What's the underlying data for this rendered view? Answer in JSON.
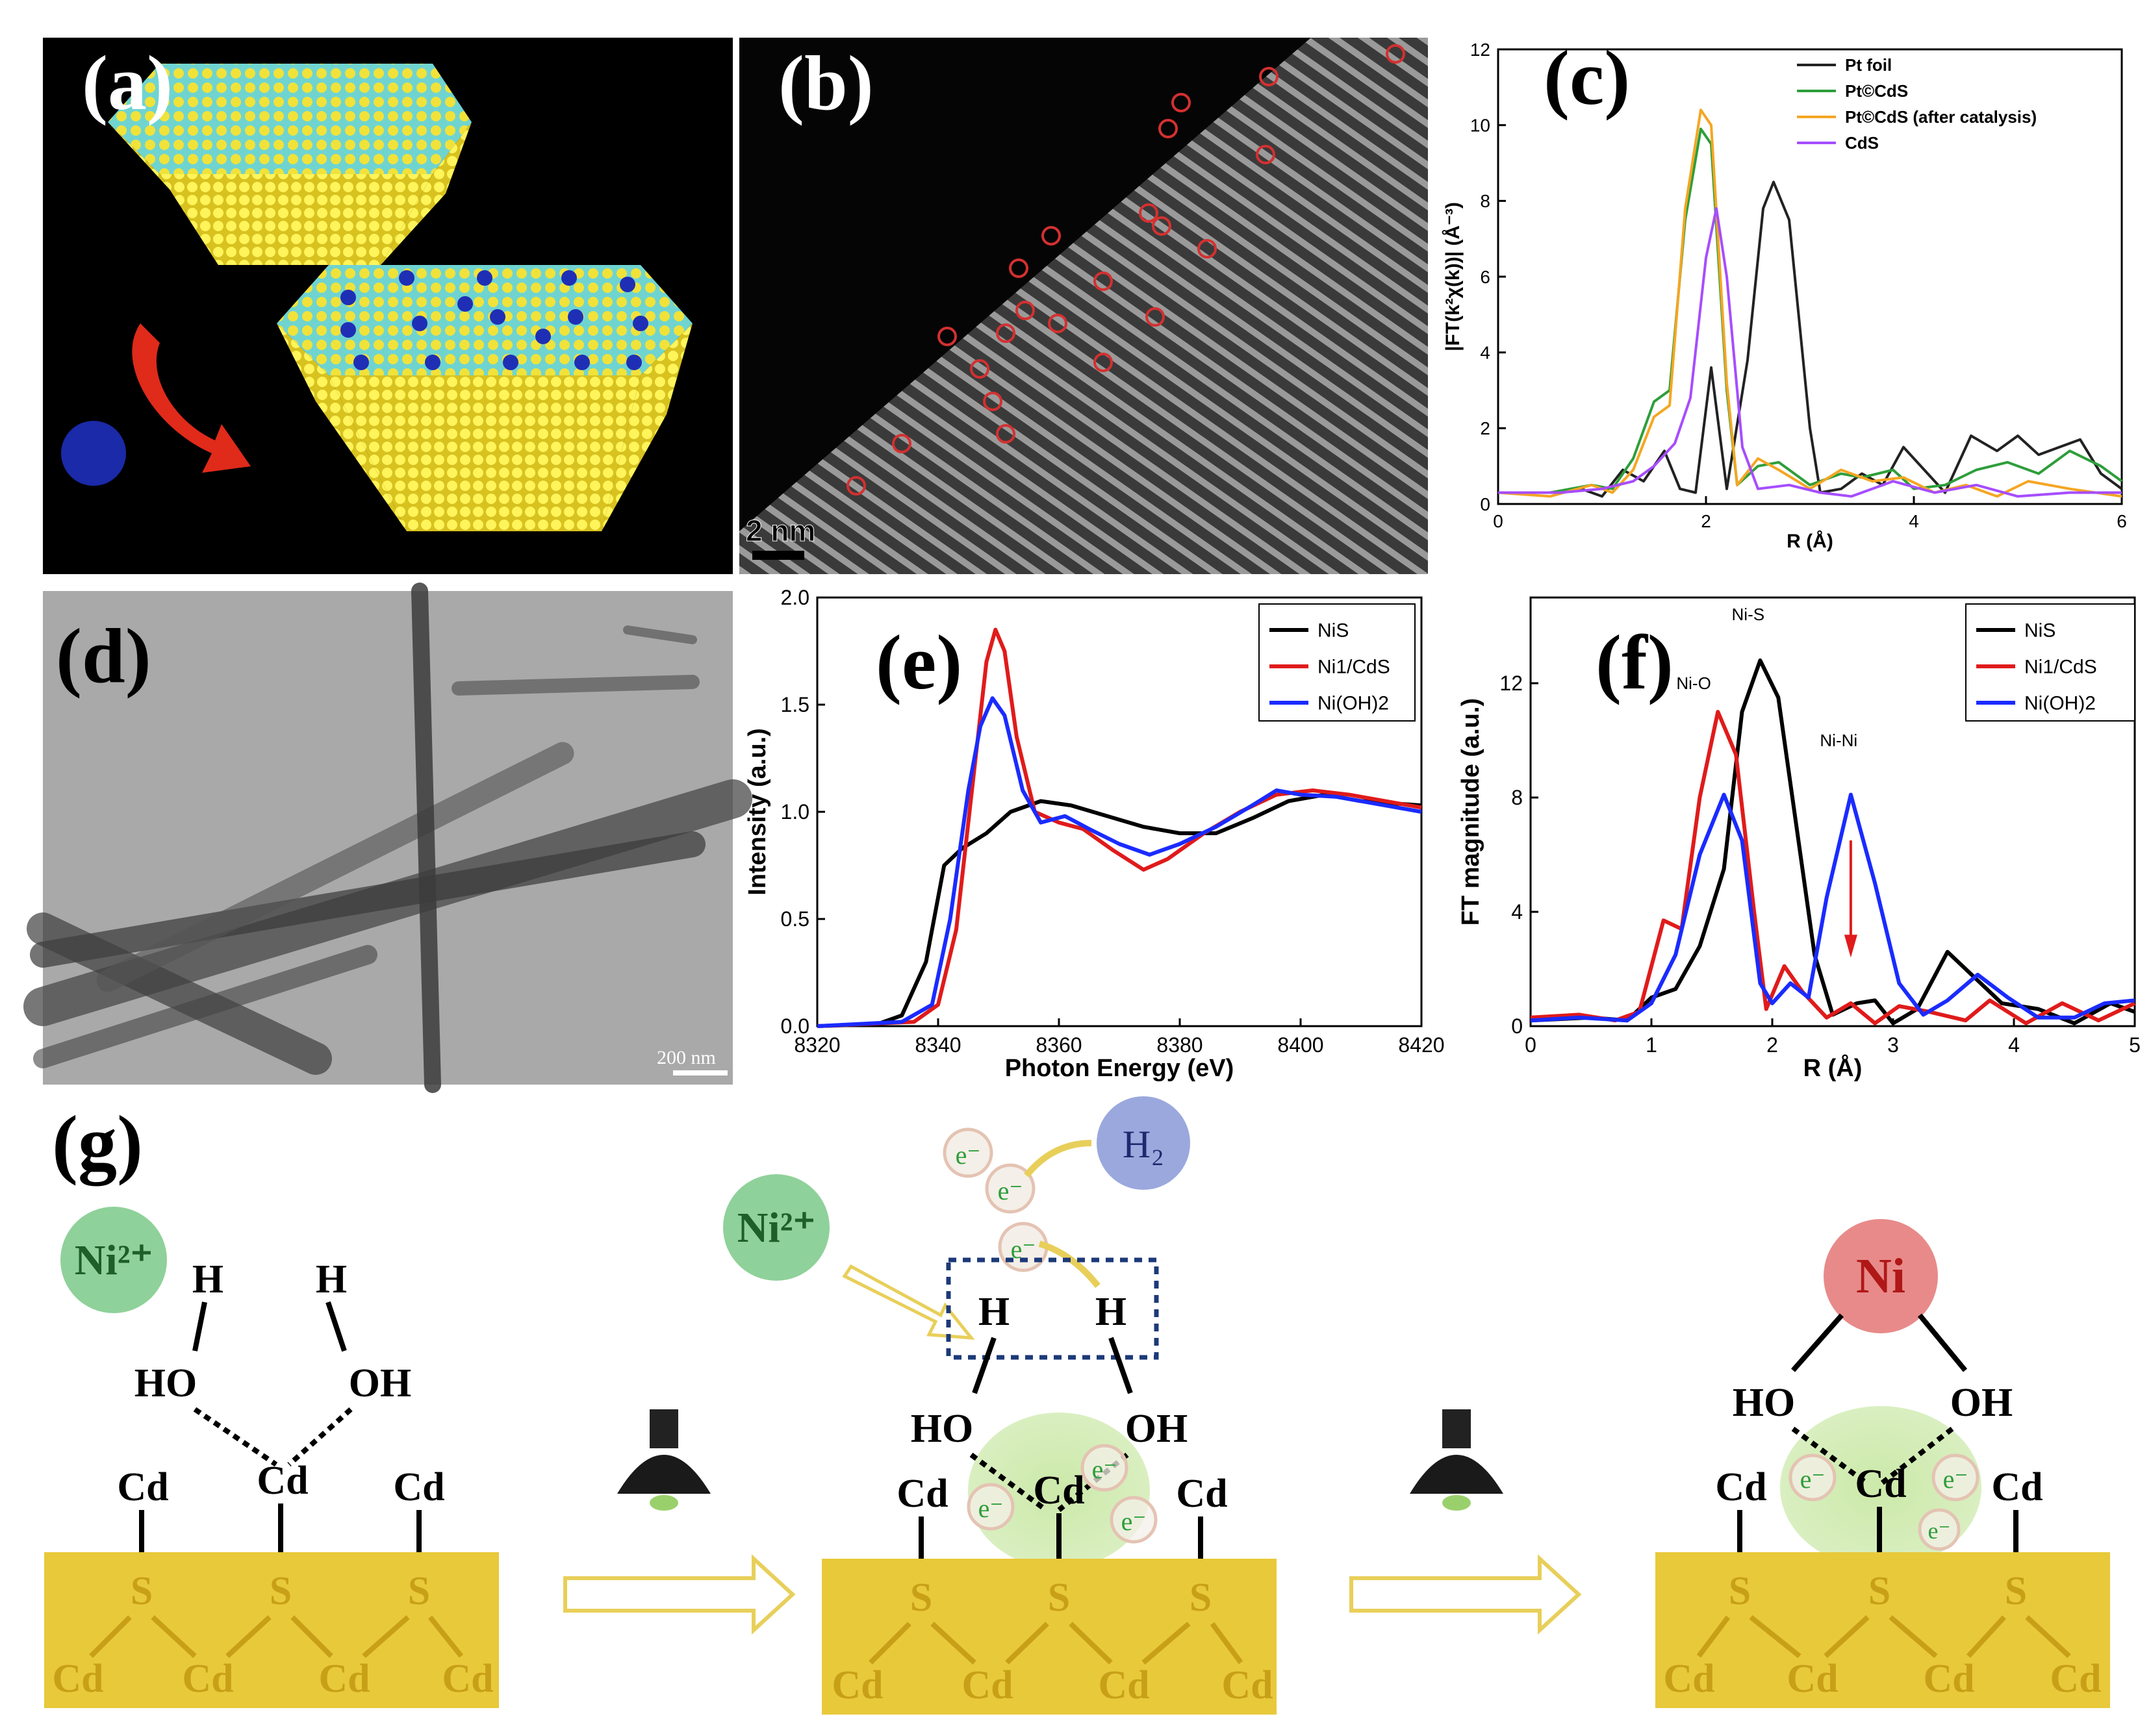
{
  "labels": {
    "a": "(a)",
    "b": "(b)",
    "c": "(c)",
    "d": "(d)",
    "e": "(e)",
    "f": "(f)",
    "g": "(g)"
  },
  "panel_b": {
    "scalebar": "2 nm"
  },
  "panel_d": {
    "scalebar": "200 nm"
  },
  "colors": {
    "cds_surface": "#e8c93a",
    "ni_green": "#8fd19a",
    "ni_red": "#e88a8a",
    "h2_blue": "#9aa8dd",
    "black": "#000000",
    "red": "#d91e1e",
    "blue": "#1a2bff",
    "green": "#2e9e3a",
    "orange": "#f5a623",
    "purple": "#a64dff"
  },
  "chart_data": [
    {
      "id": "c",
      "type": "line",
      "xlabel": "R (Å)",
      "ylabel": "|FT(k²χ(k))| (Å⁻³)",
      "xlim": [
        0,
        6
      ],
      "ylim": [
        0,
        12
      ],
      "xticks": [
        0,
        2,
        4,
        6
      ],
      "yticks": [
        0,
        2,
        4,
        6,
        8,
        10,
        12
      ],
      "legend_position": "top-right",
      "series": [
        {
          "name": "Pt foil",
          "color": "#222222",
          "points": [
            [
              0,
              0.3
            ],
            [
              0.5,
              0.3
            ],
            [
              0.8,
              0.4
            ],
            [
              1.0,
              0.2
            ],
            [
              1.2,
              0.9
            ],
            [
              1.4,
              0.6
            ],
            [
              1.6,
              1.4
            ],
            [
              1.75,
              0.4
            ],
            [
              1.9,
              0.3
            ],
            [
              2.05,
              3.6
            ],
            [
              2.2,
              0.4
            ],
            [
              2.4,
              3.8
            ],
            [
              2.55,
              7.8
            ],
            [
              2.65,
              8.5
            ],
            [
              2.8,
              7.5
            ],
            [
              3.0,
              2.0
            ],
            [
              3.1,
              0.3
            ],
            [
              3.3,
              0.4
            ],
            [
              3.5,
              0.8
            ],
            [
              3.7,
              0.5
            ],
            [
              3.9,
              1.5
            ],
            [
              4.1,
              0.9
            ],
            [
              4.3,
              0.3
            ],
            [
              4.55,
              1.8
            ],
            [
              4.8,
              1.4
            ],
            [
              5.0,
              1.8
            ],
            [
              5.2,
              1.3
            ],
            [
              5.6,
              1.7
            ],
            [
              5.8,
              0.8
            ],
            [
              6.0,
              0.4
            ]
          ]
        },
        {
          "name": "Pt©CdS",
          "color": "#2e9e3a",
          "points": [
            [
              0,
              0.3
            ],
            [
              0.5,
              0.3
            ],
            [
              0.9,
              0.5
            ],
            [
              1.1,
              0.4
            ],
            [
              1.3,
              1.2
            ],
            [
              1.5,
              2.7
            ],
            [
              1.65,
              3.0
            ],
            [
              1.8,
              7.5
            ],
            [
              1.95,
              9.9
            ],
            [
              2.05,
              9.5
            ],
            [
              2.2,
              3.0
            ],
            [
              2.3,
              0.5
            ],
            [
              2.5,
              1.0
            ],
            [
              2.7,
              1.1
            ],
            [
              3.0,
              0.5
            ],
            [
              3.3,
              0.8
            ],
            [
              3.5,
              0.7
            ],
            [
              3.8,
              0.9
            ],
            [
              4.0,
              0.4
            ],
            [
              4.3,
              0.5
            ],
            [
              4.6,
              0.9
            ],
            [
              4.9,
              1.1
            ],
            [
              5.2,
              0.8
            ],
            [
              5.5,
              1.4
            ],
            [
              5.8,
              1.0
            ],
            [
              6.0,
              0.6
            ]
          ]
        },
        {
          "name": "Pt©CdS (after catalysis)",
          "color": "#f5a623",
          "points": [
            [
              0,
              0.3
            ],
            [
              0.5,
              0.2
            ],
            [
              0.9,
              0.5
            ],
            [
              1.1,
              0.3
            ],
            [
              1.3,
              0.9
            ],
            [
              1.5,
              2.3
            ],
            [
              1.65,
              2.6
            ],
            [
              1.8,
              7.8
            ],
            [
              1.95,
              10.4
            ],
            [
              2.05,
              10.0
            ],
            [
              2.2,
              3.2
            ],
            [
              2.3,
              0.5
            ],
            [
              2.5,
              1.2
            ],
            [
              2.7,
              0.9
            ],
            [
              3.0,
              0.4
            ],
            [
              3.3,
              0.9
            ],
            [
              3.6,
              0.6
            ],
            [
              3.9,
              0.7
            ],
            [
              4.2,
              0.3
            ],
            [
              4.5,
              0.5
            ],
            [
              4.8,
              0.2
            ],
            [
              5.1,
              0.6
            ],
            [
              5.5,
              0.4
            ],
            [
              6.0,
              0.2
            ]
          ]
        },
        {
          "name": "CdS",
          "color": "#a64dff",
          "points": [
            [
              0,
              0.3
            ],
            [
              0.6,
              0.3
            ],
            [
              1.0,
              0.4
            ],
            [
              1.3,
              0.6
            ],
            [
              1.5,
              1.0
            ],
            [
              1.7,
              1.6
            ],
            [
              1.85,
              2.8
            ],
            [
              2.0,
              6.5
            ],
            [
              2.1,
              7.8
            ],
            [
              2.2,
              6.0
            ],
            [
              2.35,
              1.5
            ],
            [
              2.5,
              0.4
            ],
            [
              2.8,
              0.5
            ],
            [
              3.1,
              0.3
            ],
            [
              3.4,
              0.2
            ],
            [
              3.8,
              0.6
            ],
            [
              4.2,
              0.3
            ],
            [
              4.6,
              0.5
            ],
            [
              5.0,
              0.2
            ],
            [
              5.5,
              0.3
            ],
            [
              6.0,
              0.3
            ]
          ]
        }
      ]
    },
    {
      "id": "e",
      "type": "line",
      "xlabel": "Photon Energy (eV)",
      "ylabel": "Intensity (a.u.)",
      "xlim": [
        8320,
        8420
      ],
      "ylim": [
        0,
        2.0
      ],
      "xticks": [
        8320,
        8340,
        8360,
        8380,
        8400,
        8420
      ],
      "yticks": [
        0.0,
        0.5,
        1.0,
        1.5,
        2.0
      ],
      "legend_position": "top-right",
      "series": [
        {
          "name": "NiS",
          "color": "#000000",
          "points": [
            [
              8320,
              0
            ],
            [
              8330,
              0.01
            ],
            [
              8334,
              0.05
            ],
            [
              8338,
              0.3
            ],
            [
              8341,
              0.75
            ],
            [
              8344,
              0.83
            ],
            [
              8348,
              0.9
            ],
            [
              8352,
              1.0
            ],
            [
              8357,
              1.05
            ],
            [
              8362,
              1.03
            ],
            [
              8368,
              0.98
            ],
            [
              8374,
              0.93
            ],
            [
              8380,
              0.9
            ],
            [
              8386,
              0.9
            ],
            [
              8392,
              0.97
            ],
            [
              8398,
              1.05
            ],
            [
              8404,
              1.08
            ],
            [
              8410,
              1.05
            ],
            [
              8420,
              1.03
            ]
          ]
        },
        {
          "name": "Ni1/CdS",
          "color": "#e01b1b",
          "points": [
            [
              8320,
              0
            ],
            [
              8336,
              0.02
            ],
            [
              8340,
              0.1
            ],
            [
              8343,
              0.45
            ],
            [
              8346,
              1.2
            ],
            [
              8348,
              1.7
            ],
            [
              8349.5,
              1.85
            ],
            [
              8351,
              1.75
            ],
            [
              8353,
              1.35
            ],
            [
              8356,
              1.0
            ],
            [
              8360,
              0.95
            ],
            [
              8364,
              0.92
            ],
            [
              8369,
              0.82
            ],
            [
              8374,
              0.73
            ],
            [
              8378,
              0.78
            ],
            [
              8384,
              0.9
            ],
            [
              8390,
              1.0
            ],
            [
              8396,
              1.08
            ],
            [
              8402,
              1.1
            ],
            [
              8408,
              1.08
            ],
            [
              8420,
              1.02
            ]
          ]
        },
        {
          "name": "Ni(OH)2",
          "color": "#1a2bff",
          "points": [
            [
              8320,
              0
            ],
            [
              8334,
              0.02
            ],
            [
              8339,
              0.1
            ],
            [
              8342,
              0.5
            ],
            [
              8345,
              1.1
            ],
            [
              8347,
              1.4
            ],
            [
              8349,
              1.53
            ],
            [
              8351,
              1.45
            ],
            [
              8354,
              1.1
            ],
            [
              8357,
              0.95
            ],
            [
              8361,
              0.98
            ],
            [
              8365,
              0.92
            ],
            [
              8370,
              0.85
            ],
            [
              8375,
              0.8
            ],
            [
              8380,
              0.85
            ],
            [
              8386,
              0.93
            ],
            [
              8392,
              1.03
            ],
            [
              8396,
              1.1
            ],
            [
              8400,
              1.08
            ],
            [
              8406,
              1.07
            ],
            [
              8420,
              1.0
            ]
          ]
        }
      ]
    },
    {
      "id": "f",
      "type": "line",
      "xlabel": "R (Å)",
      "ylabel": "FT magnitude (a.u.)",
      "xlim": [
        0,
        5
      ],
      "ylim": [
        0,
        15
      ],
      "xticks": [
        0,
        1,
        2,
        3,
        4,
        5
      ],
      "yticks": [
        0,
        4,
        8,
        12
      ],
      "legend_position": "top-right",
      "annotations": [
        {
          "text": "Ni-O",
          "x": 1.35,
          "y": 11.8
        },
        {
          "text": "Ni-S",
          "x": 1.8,
          "y": 14.2
        },
        {
          "text": "Ni-Ni",
          "x": 2.55,
          "y": 9.8
        }
      ],
      "series": [
        {
          "name": "NiS",
          "color": "#000000",
          "points": [
            [
              0,
              0.2
            ],
            [
              0.5,
              0.3
            ],
            [
              0.8,
              0.2
            ],
            [
              1.0,
              1.0
            ],
            [
              1.2,
              1.3
            ],
            [
              1.4,
              2.8
            ],
            [
              1.6,
              5.5
            ],
            [
              1.75,
              11.0
            ],
            [
              1.9,
              12.8
            ],
            [
              2.05,
              11.5
            ],
            [
              2.2,
              7.0
            ],
            [
              2.35,
              2.5
            ],
            [
              2.5,
              0.4
            ],
            [
              2.7,
              0.8
            ],
            [
              2.85,
              0.9
            ],
            [
              3.0,
              0.1
            ],
            [
              3.2,
              0.6
            ],
            [
              3.45,
              2.6
            ],
            [
              3.65,
              1.8
            ],
            [
              3.9,
              0.8
            ],
            [
              4.2,
              0.6
            ],
            [
              4.5,
              0.1
            ],
            [
              4.8,
              0.8
            ],
            [
              5.0,
              0.5
            ]
          ]
        },
        {
          "name": "Ni1/CdS",
          "color": "#e01b1b",
          "points": [
            [
              0,
              0.3
            ],
            [
              0.4,
              0.4
            ],
            [
              0.7,
              0.2
            ],
            [
              0.9,
              0.5
            ],
            [
              1.1,
              3.7
            ],
            [
              1.25,
              3.4
            ],
            [
              1.4,
              8.0
            ],
            [
              1.55,
              11.0
            ],
            [
              1.7,
              9.5
            ],
            [
              1.85,
              4.0
            ],
            [
              1.95,
              0.6
            ],
            [
              2.1,
              2.1
            ],
            [
              2.25,
              1.2
            ],
            [
              2.45,
              0.3
            ],
            [
              2.65,
              0.8
            ],
            [
              2.85,
              0.1
            ],
            [
              3.05,
              0.7
            ],
            [
              3.3,
              0.5
            ],
            [
              3.6,
              0.2
            ],
            [
              3.8,
              0.9
            ],
            [
              4.1,
              0.1
            ],
            [
              4.4,
              0.8
            ],
            [
              4.7,
              0.2
            ],
            [
              5.0,
              0.8
            ]
          ]
        },
        {
          "name": "Ni(OH)2",
          "color": "#1a2bff",
          "points": [
            [
              0,
              0.2
            ],
            [
              0.4,
              0.3
            ],
            [
              0.8,
              0.2
            ],
            [
              1.0,
              0.8
            ],
            [
              1.2,
              2.5
            ],
            [
              1.4,
              6.0
            ],
            [
              1.6,
              8.1
            ],
            [
              1.75,
              6.5
            ],
            [
              1.9,
              1.5
            ],
            [
              2.0,
              0.8
            ],
            [
              2.15,
              1.5
            ],
            [
              2.3,
              1.0
            ],
            [
              2.45,
              4.5
            ],
            [
              2.65,
              8.1
            ],
            [
              2.85,
              5.0
            ],
            [
              3.05,
              1.5
            ],
            [
              3.25,
              0.4
            ],
            [
              3.45,
              0.9
            ],
            [
              3.7,
              1.8
            ],
            [
              3.95,
              1.0
            ],
            [
              4.2,
              0.3
            ],
            [
              4.5,
              0.3
            ],
            [
              4.75,
              0.8
            ],
            [
              5.0,
              0.9
            ]
          ]
        }
      ]
    }
  ],
  "schematic": {
    "ni2": "Ni²⁺",
    "ni": "Ni",
    "h": "H",
    "ho": "HO",
    "oh": "OH",
    "cd": "Cd",
    "s": "S",
    "e": "e⁻",
    "h2": "H₂"
  }
}
